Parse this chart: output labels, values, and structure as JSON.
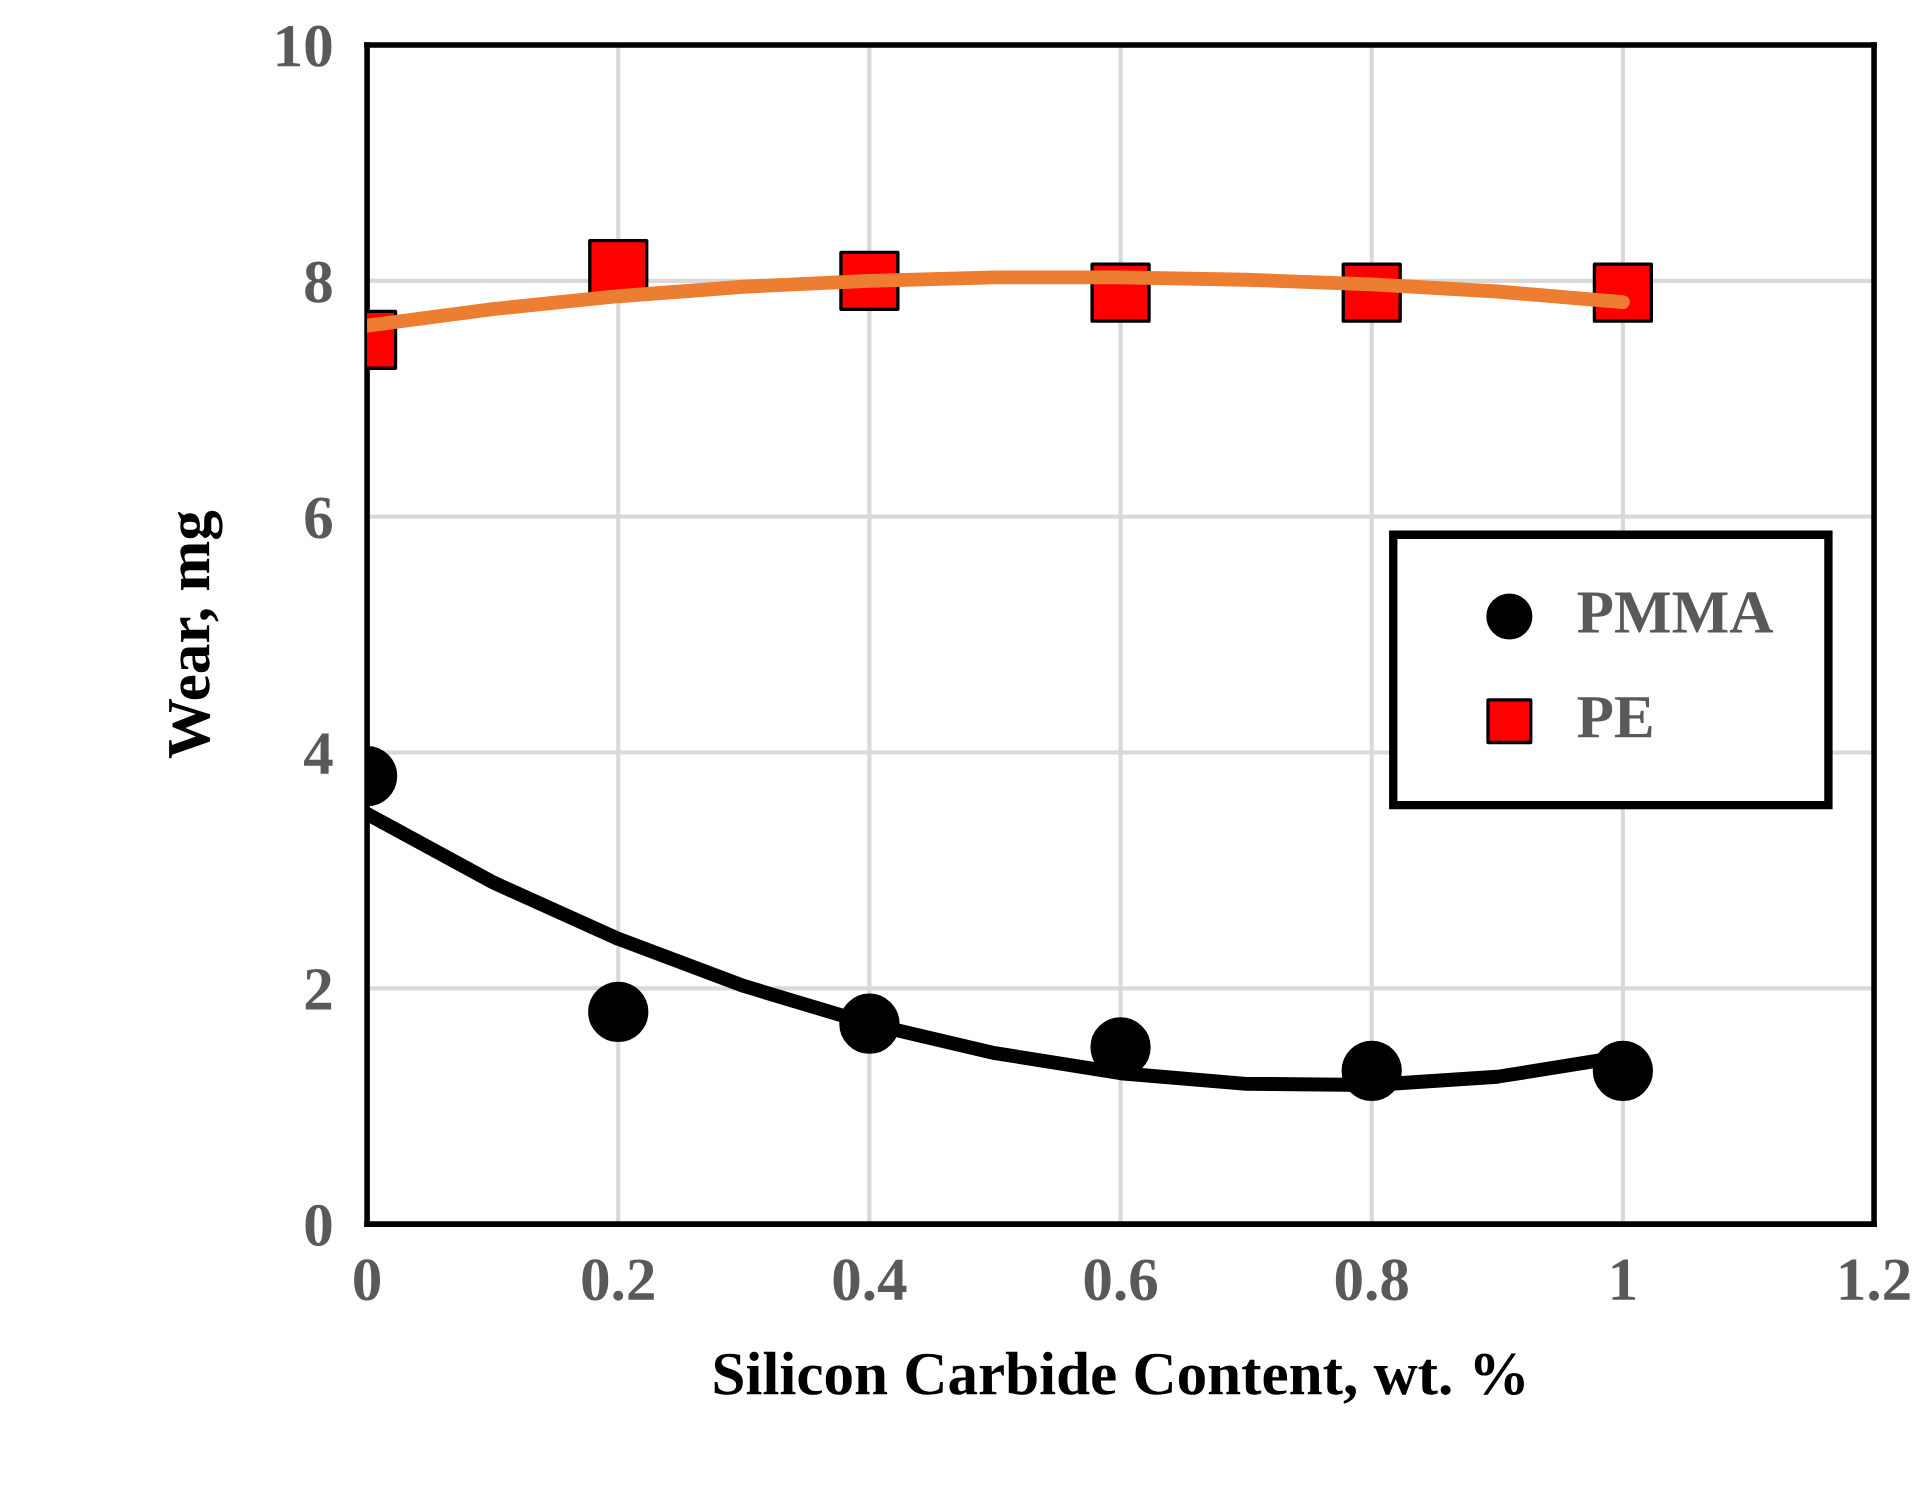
{
  "chart_data": {
    "type": "scatter",
    "xlabel": "Silicon Carbide Content, wt. %",
    "ylabel": "Wear, mg",
    "xlim": [
      0,
      1.2
    ],
    "xticks": [
      0,
      0.2,
      0.4,
      0.6,
      0.8,
      1,
      1.2
    ],
    "ylim": [
      0,
      10
    ],
    "yticks": [
      0,
      2,
      4,
      6,
      8,
      10
    ],
    "grid": true,
    "legend": "right",
    "series": [
      {
        "name": "PMMA",
        "marker": "circle",
        "color": "#000000",
        "x": [
          0,
          0.2,
          0.4,
          0.6,
          0.8,
          1
        ],
        "values": [
          3.8,
          1.8,
          1.7,
          1.5,
          1.3,
          1.3
        ]
      },
      {
        "name": "PE",
        "marker": "square",
        "color": "#ff0000",
        "x": [
          0,
          0.2,
          0.4,
          0.6,
          0.8,
          1
        ],
        "values": [
          7.5,
          8.1,
          8.0,
          7.9,
          7.9,
          7.9
        ]
      },
      {
        "type": "line",
        "marker": "none",
        "color": "#000000",
        "x": [
          0,
          0.1,
          0.2,
          0.3,
          0.4,
          0.5,
          0.6,
          0.7,
          0.8,
          0.9,
          1
        ],
        "values": [
          3.48,
          2.9,
          2.42,
          2.02,
          1.7,
          1.45,
          1.28,
          1.19,
          1.18,
          1.25,
          1.42
        ]
      },
      {
        "type": "line",
        "marker": "none",
        "color": "#ed7d31",
        "x": [
          0,
          0.1,
          0.2,
          0.3,
          0.4,
          0.5,
          0.6,
          0.7,
          0.8,
          0.9,
          1
        ],
        "values": [
          7.62,
          7.76,
          7.87,
          7.95,
          8.0,
          8.03,
          8.03,
          8.01,
          7.97,
          7.91,
          7.82
        ]
      }
    ]
  }
}
